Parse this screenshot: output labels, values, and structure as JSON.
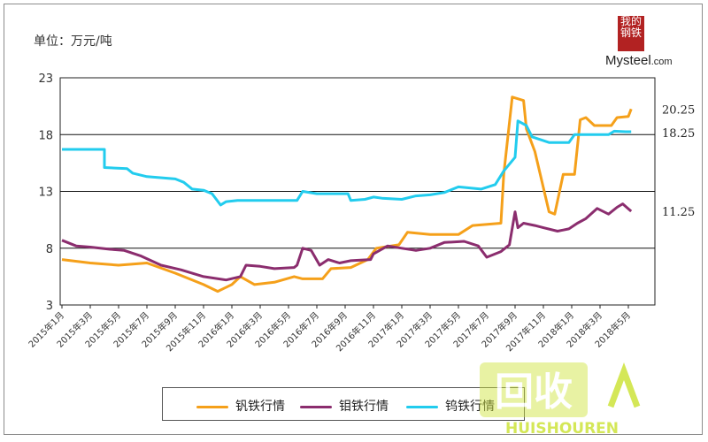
{
  "unit_label": "单位：万元/吨",
  "logo": {
    "mark_text": "我的钢铁",
    "text": "Mysteel",
    "suffix": ".com"
  },
  "watermark": {
    "main": "回收",
    "sub": "HUISHOUREN"
  },
  "chart_data": {
    "type": "line",
    "title": "",
    "xlabel": "",
    "ylabel": "单位：万元/吨",
    "ylim": [
      3,
      23
    ],
    "yticks": [
      3,
      8,
      13,
      18,
      23
    ],
    "grid": "horizontal",
    "legend_position": "bottom",
    "x_tick_labels": [
      "2015年1月",
      "2015年3月",
      "2015年5月",
      "2015年7月",
      "2015年9月",
      "2015年11月",
      "2016年1月",
      "2016年3月",
      "2016年5月",
      "2016年7月",
      "2016年9月",
      "2016年11月",
      "2017年1月",
      "2017年3月",
      "2017年5月",
      "2017年7月",
      "2017年9月",
      "2017年11月",
      "2018年1月",
      "2018年3月",
      "2018年5月"
    ],
    "end_labels": [
      "20.25",
      "18.25",
      "11.25"
    ],
    "series": [
      {
        "name": "钒铁行情",
        "color": "#f5a01a",
        "points": [
          [
            0,
            7
          ],
          [
            1,
            6.7
          ],
          [
            2,
            6.5
          ],
          [
            3,
            6.7
          ],
          [
            4,
            5.8
          ],
          [
            5,
            4.8
          ],
          [
            5.5,
            4.2
          ],
          [
            6,
            4.8
          ],
          [
            6.3,
            5.5
          ],
          [
            6.8,
            4.8
          ],
          [
            7.5,
            5
          ],
          [
            8.2,
            5.5
          ],
          [
            8.5,
            5.3
          ],
          [
            9.2,
            5.3
          ],
          [
            9.5,
            6.2
          ],
          [
            10.2,
            6.3
          ],
          [
            10.8,
            7
          ],
          [
            11.1,
            8
          ],
          [
            11.9,
            8.3
          ],
          [
            12.2,
            9.4
          ],
          [
            13,
            9.2
          ],
          [
            14,
            9.2
          ],
          [
            14.5,
            10
          ],
          [
            15.5,
            10.2
          ],
          [
            15.6,
            14.5
          ],
          [
            15.9,
            21.3
          ],
          [
            16.3,
            21
          ],
          [
            16.4,
            18.5
          ],
          [
            16.7,
            16.5
          ],
          [
            17.2,
            11.2
          ],
          [
            17.4,
            11
          ],
          [
            17.7,
            14.5
          ],
          [
            18.1,
            14.5
          ],
          [
            18.3,
            19.3
          ],
          [
            18.5,
            19.5
          ],
          [
            18.8,
            18.8
          ],
          [
            19.4,
            18.8
          ],
          [
            19.6,
            19.5
          ],
          [
            20,
            19.6
          ],
          [
            20.1,
            20.25
          ]
        ]
      },
      {
        "name": "钼铁行情",
        "color": "#8b2d6e",
        "points": [
          [
            0,
            8.7
          ],
          [
            0.5,
            8.2
          ],
          [
            1,
            8.1
          ],
          [
            1.7,
            7.9
          ],
          [
            2.2,
            7.8
          ],
          [
            2.8,
            7.3
          ],
          [
            3.5,
            6.5
          ],
          [
            4.2,
            6.1
          ],
          [
            5,
            5.5
          ],
          [
            5.8,
            5.2
          ],
          [
            6.3,
            5.5
          ],
          [
            6.5,
            6.5
          ],
          [
            7,
            6.4
          ],
          [
            7.5,
            6.2
          ],
          [
            8.2,
            6.3
          ],
          [
            8.3,
            6.5
          ],
          [
            8.5,
            8
          ],
          [
            8.8,
            7.8
          ],
          [
            9.1,
            6.5
          ],
          [
            9.4,
            7
          ],
          [
            9.8,
            6.7
          ],
          [
            10.2,
            6.9
          ],
          [
            10.9,
            7
          ],
          [
            11,
            7.5
          ],
          [
            11.5,
            8.2
          ],
          [
            12,
            8
          ],
          [
            12.5,
            7.8
          ],
          [
            13,
            8
          ],
          [
            13.5,
            8.5
          ],
          [
            14.2,
            8.6
          ],
          [
            14.7,
            8.2
          ],
          [
            15,
            7.2
          ],
          [
            15.5,
            7.7
          ],
          [
            15.8,
            8.3
          ],
          [
            16,
            11.2
          ],
          [
            16.1,
            9.8
          ],
          [
            16.3,
            10.2
          ],
          [
            16.7,
            10
          ],
          [
            17,
            9.8
          ],
          [
            17.5,
            9.5
          ],
          [
            17.9,
            9.7
          ],
          [
            18.2,
            10.2
          ],
          [
            18.5,
            10.6
          ],
          [
            18.9,
            11.5
          ],
          [
            19.3,
            11
          ],
          [
            19.6,
            11.6
          ],
          [
            19.8,
            11.9
          ],
          [
            20.1,
            11.25
          ]
        ]
      },
      {
        "name": "钨铁行情",
        "color": "#22ccee",
        "points": [
          [
            0,
            16.7
          ],
          [
            1.5,
            16.7
          ],
          [
            1.5,
            15.1
          ],
          [
            2.3,
            15
          ],
          [
            2.5,
            14.6
          ],
          [
            3,
            14.3
          ],
          [
            4,
            14.1
          ],
          [
            4.3,
            13.8
          ],
          [
            4.6,
            13.2
          ],
          [
            5,
            13.1
          ],
          [
            5.3,
            12.8
          ],
          [
            5.6,
            11.8
          ],
          [
            5.8,
            12.1
          ],
          [
            6.2,
            12.2
          ],
          [
            7,
            12.2
          ],
          [
            8.3,
            12.2
          ],
          [
            8.5,
            13
          ],
          [
            9,
            12.8
          ],
          [
            10.1,
            12.8
          ],
          [
            10.2,
            12.2
          ],
          [
            10.7,
            12.3
          ],
          [
            11,
            12.5
          ],
          [
            11.3,
            12.4
          ],
          [
            12,
            12.3
          ],
          [
            12.5,
            12.6
          ],
          [
            13,
            12.7
          ],
          [
            13.5,
            12.9
          ],
          [
            14,
            13.4
          ],
          [
            14.8,
            13.2
          ],
          [
            15.3,
            13.6
          ],
          [
            15.6,
            14.8
          ],
          [
            16,
            16
          ],
          [
            16.1,
            19.2
          ],
          [
            16.4,
            18.8
          ],
          [
            16.6,
            17.8
          ],
          [
            17.2,
            17.3
          ],
          [
            17.9,
            17.3
          ],
          [
            18.1,
            18
          ],
          [
            18.7,
            18
          ],
          [
            19.3,
            18
          ],
          [
            19.5,
            18.3
          ],
          [
            19.9,
            18.25
          ],
          [
            20.1,
            18.25
          ]
        ]
      }
    ]
  }
}
